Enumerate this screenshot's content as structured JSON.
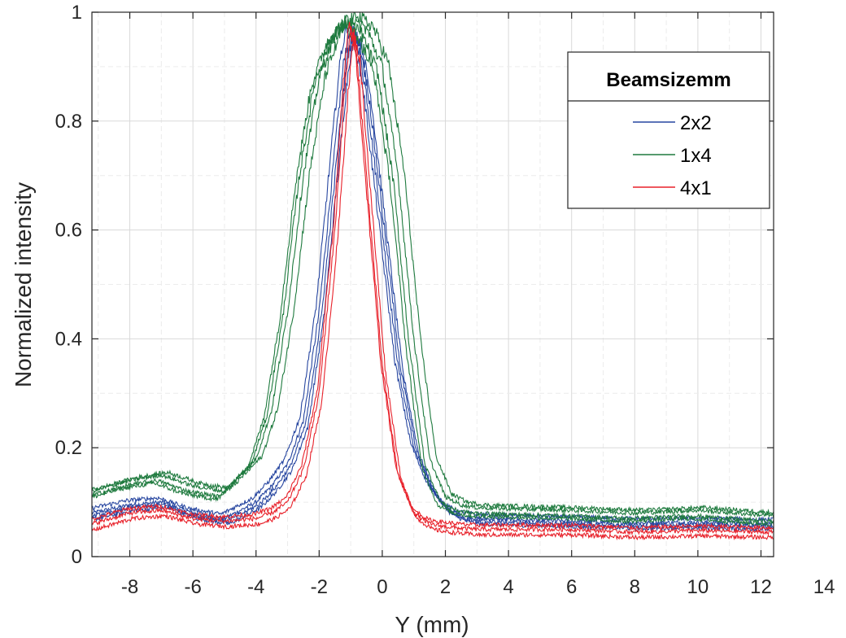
{
  "chart_data": {
    "type": "line",
    "xlabel": "Y (mm)",
    "ylabel": "Normalized intensity",
    "xlim": [
      -9.2,
      12.4
    ],
    "ylim": [
      0,
      1
    ],
    "xticks": [
      -8,
      -6,
      -4,
      -2,
      0,
      2,
      4,
      6,
      8,
      10,
      12,
      14
    ],
    "xtick_labels": [
      "-8",
      "-6",
      "-4",
      "-2",
      "0",
      "2",
      "4",
      "6",
      "8",
      "10",
      "12",
      "14"
    ],
    "yticks": [
      0,
      0.2,
      0.4,
      0.6,
      0.8,
      1
    ],
    "ytick_labels": [
      "0",
      "0.2",
      "0.4",
      "0.6",
      "0.8",
      "1"
    ],
    "grid": true,
    "legend": {
      "title": "Beamsizemm",
      "position": "top-right"
    },
    "x": [
      -9.2,
      -8,
      -7,
      -6,
      -5,
      -4,
      -3.5,
      -3,
      -2.5,
      -2,
      -1.5,
      -1.2,
      -1,
      -0.8,
      -0.5,
      0,
      0.5,
      1,
      1.5,
      2,
      2.5,
      3,
      4,
      6,
      8,
      10,
      12.4
    ],
    "series": [
      {
        "name": "2x2",
        "color": "#2746a0",
        "values": [
          0.08,
          0.095,
          0.1,
          0.08,
          0.07,
          0.1,
          0.13,
          0.17,
          0.25,
          0.45,
          0.75,
          0.92,
          0.97,
          0.95,
          0.85,
          0.6,
          0.35,
          0.2,
          0.13,
          0.09,
          0.075,
          0.07,
          0.068,
          0.065,
          0.062,
          0.063,
          0.06
        ],
        "copies": [
          {
            "shift": 0,
            "offset": 0
          },
          {
            "shift": 0.15,
            "offset": -0.01
          },
          {
            "shift": -0.1,
            "offset": 0.008
          },
          {
            "shift": 0.08,
            "offset": -0.005
          }
        ]
      },
      {
        "name": "1x4",
        "color": "#1e7a3e",
        "values": [
          0.12,
          0.14,
          0.15,
          0.13,
          0.12,
          0.18,
          0.27,
          0.45,
          0.7,
          0.88,
          0.96,
          0.98,
          0.99,
          0.98,
          0.97,
          0.9,
          0.7,
          0.4,
          0.18,
          0.11,
          0.095,
          0.09,
          0.088,
          0.085,
          0.08,
          0.085,
          0.075
        ],
        "copies": [
          {
            "shift": 0,
            "offset": 0
          },
          {
            "shift": -0.15,
            "offset": -0.01
          },
          {
            "shift": 0.2,
            "offset": 0.005
          },
          {
            "shift": -0.25,
            "offset": -0.015
          }
        ]
      },
      {
        "name": "4x1",
        "color": "#e8212a",
        "values": [
          0.06,
          0.08,
          0.085,
          0.07,
          0.065,
          0.07,
          0.08,
          0.1,
          0.16,
          0.3,
          0.6,
          0.85,
          0.97,
          0.92,
          0.7,
          0.35,
          0.15,
          0.08,
          0.06,
          0.055,
          0.052,
          0.05,
          0.05,
          0.05,
          0.045,
          0.048,
          0.045
        ],
        "copies": [
          {
            "shift": 0,
            "offset": 0
          },
          {
            "shift": 0.1,
            "offset": -0.01
          },
          {
            "shift": -0.05,
            "offset": 0.008
          }
        ]
      }
    ]
  }
}
